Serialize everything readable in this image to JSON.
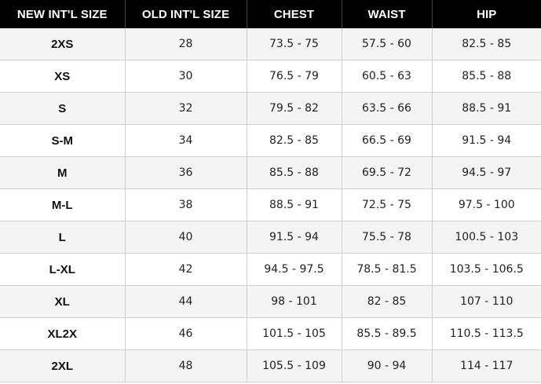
{
  "table": {
    "headers": [
      "NEW INT'L SIZE",
      "OLD INT'L SIZE",
      "CHEST",
      "WAIST",
      "HIP"
    ],
    "rows": [
      [
        "2XS",
        "28",
        "73.5 - 75",
        "57.5 - 60",
        "82.5 - 85"
      ],
      [
        "XS",
        "30",
        "76.5 - 79",
        "60.5 - 63",
        "85.5 - 88"
      ],
      [
        "S",
        "32",
        "79.5 - 82",
        "63.5 - 66",
        "88.5 - 91"
      ],
      [
        "S-M",
        "34",
        "82.5 - 85",
        "66.5 - 69",
        "91.5 - 94"
      ],
      [
        "M",
        "36",
        "85.5 - 88",
        "69.5 - 72",
        "94.5 - 97"
      ],
      [
        "M-L",
        "38",
        "88.5 - 91",
        "72.5 - 75",
        "97.5 - 100"
      ],
      [
        "L",
        "40",
        "91.5 - 94",
        "75.5 - 78",
        "100.5 - 103"
      ],
      [
        "L-XL",
        "42",
        "94.5 - 97.5",
        "78.5 - 81.5",
        "103.5 - 106.5"
      ],
      [
        "XL",
        "44",
        "98 - 101",
        "82 - 85",
        "107 - 110"
      ],
      [
        "XL2X",
        "46",
        "101.5 - 105",
        "85.5 - 89.5",
        "110.5 - 113.5"
      ],
      [
        "2XL",
        "48",
        "105.5 - 109",
        "90 - 94",
        "114 - 117"
      ]
    ]
  },
  "colors": {
    "header_bg": "#000000",
    "header_text": "#ffffff",
    "row_alt_bg": "#f4f4f4",
    "row_bg": "#ffffff"
  }
}
